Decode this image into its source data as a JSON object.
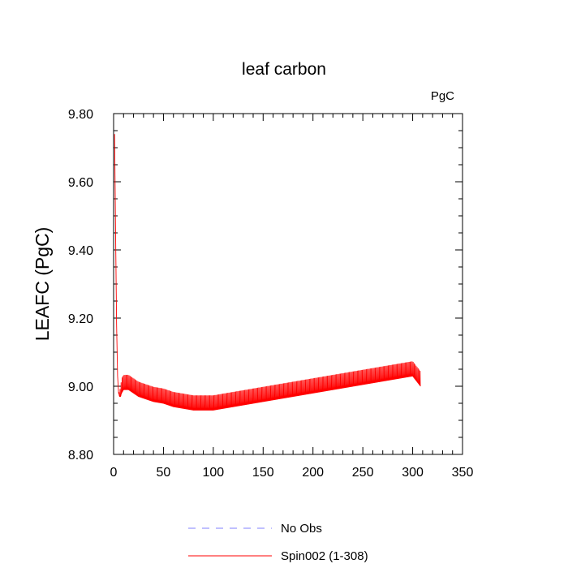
{
  "chart_data": {
    "type": "line",
    "title": "leaf carbon",
    "units_label": "PgC",
    "xlabel": "",
    "ylabel": "LEAFC  (PgC)",
    "xlim": [
      0,
      350
    ],
    "ylim": [
      8.8,
      9.8
    ],
    "xticks": [
      0,
      50,
      100,
      150,
      200,
      250,
      300,
      350
    ],
    "xtick_labels": [
      "0",
      "50",
      "100",
      "150",
      "200",
      "250",
      "300",
      "350"
    ],
    "yticks": [
      8.8,
      9.0,
      9.2,
      9.4,
      9.6,
      9.8
    ],
    "ytick_labels": [
      "8.80",
      "9.00",
      "9.20",
      "9.40",
      "9.60",
      "9.80"
    ],
    "grid": false,
    "legend_position": "bottom",
    "series": [
      {
        "name": "No Obs",
        "color": "#8080ff",
        "style": "dashed",
        "x": [],
        "y": []
      },
      {
        "name": "Spin002 (1-308)",
        "color": "#ff0000",
        "style": "solid",
        "x": [
          1,
          2,
          3,
          4,
          5,
          6,
          7,
          8,
          10,
          15,
          20,
          25,
          30,
          40,
          50,
          60,
          70,
          80,
          90,
          100,
          110,
          120,
          130,
          140,
          150,
          160,
          170,
          180,
          190,
          200,
          210,
          220,
          230,
          240,
          250,
          260,
          270,
          280,
          290,
          300,
          308
        ],
        "y": [
          9.74,
          9.45,
          9.18,
          9.03,
          8.98,
          8.97,
          8.97,
          8.98,
          8.99,
          8.99,
          8.98,
          8.97,
          8.965,
          8.955,
          8.95,
          8.94,
          8.935,
          8.93,
          8.93,
          8.93,
          8.935,
          8.94,
          8.945,
          8.95,
          8.955,
          8.96,
          8.965,
          8.97,
          8.975,
          8.98,
          8.985,
          8.99,
          8.995,
          9.0,
          9.005,
          9.01,
          9.015,
          9.02,
          9.025,
          9.03,
          9.0
        ],
        "seasonal_amplitude": 0.05
      }
    ]
  }
}
